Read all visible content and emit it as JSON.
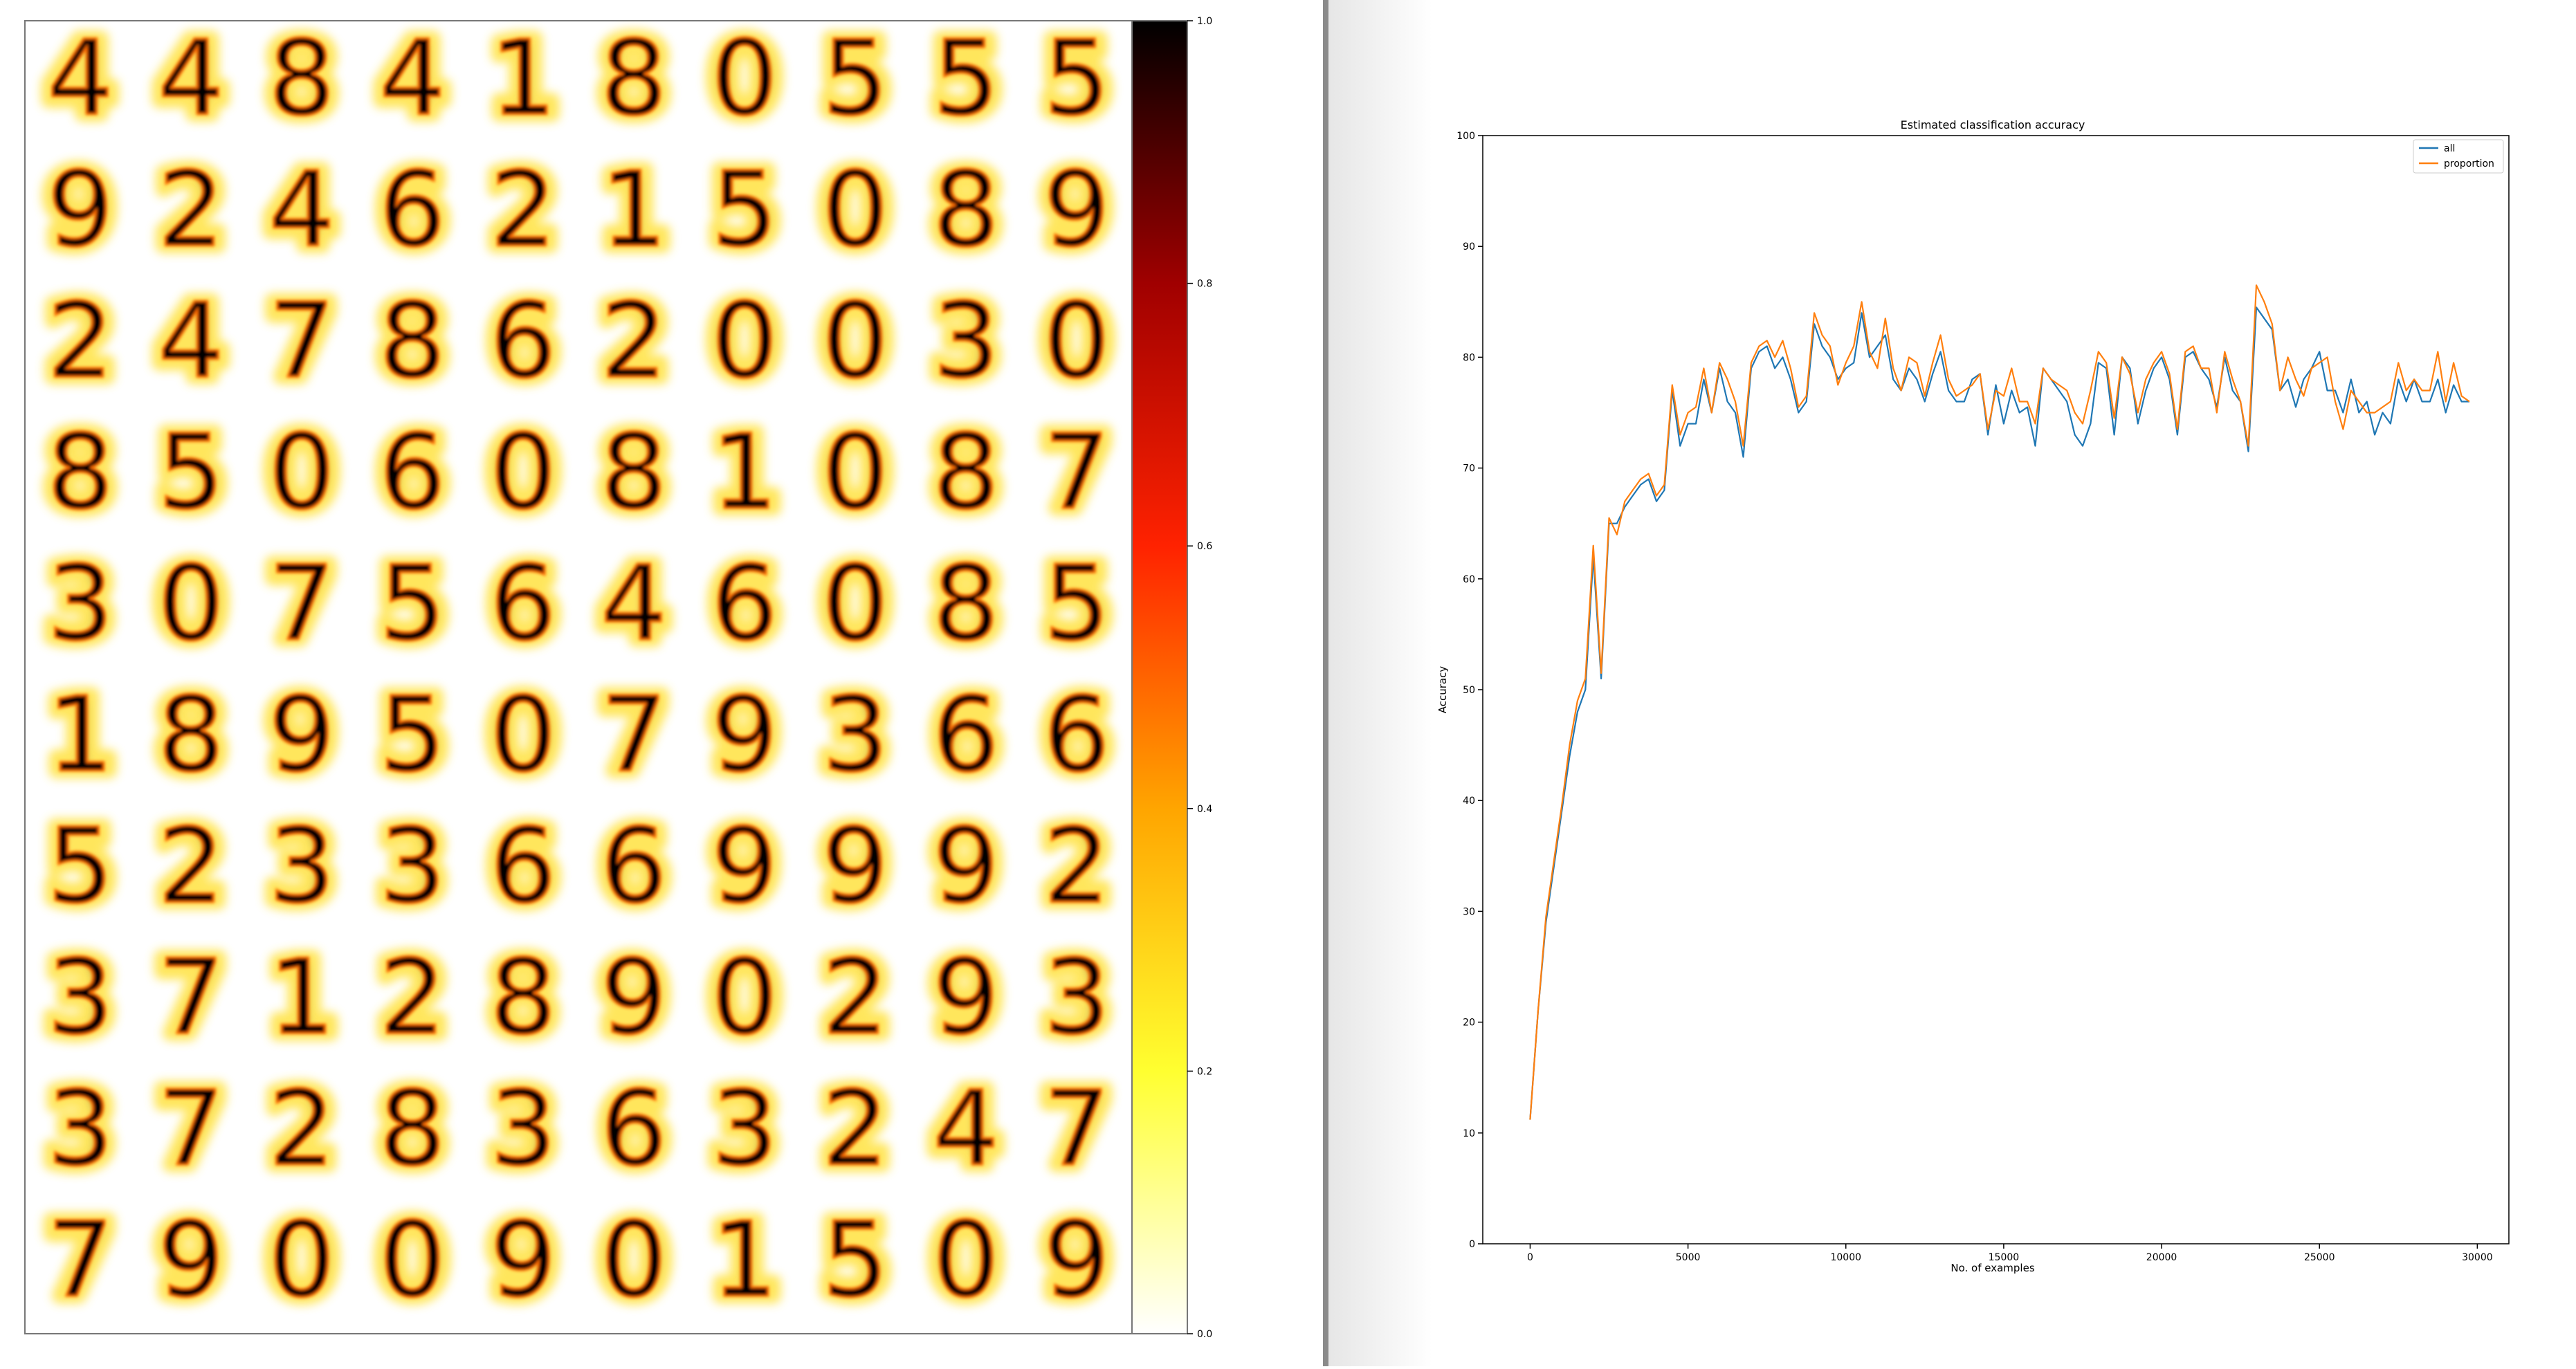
{
  "colors": {
    "colormap": [
      "#ffffff",
      "#ffff00",
      "#ff8c00",
      "#ff0000",
      "#7a0000",
      "#000000"
    ],
    "series_all": "#1f77b4",
    "series_proportion": "#ff7f0e",
    "divider": "#8a8a8a"
  },
  "digit_grid": {
    "rows": [
      [
        "4",
        "4",
        "8",
        "4",
        "1",
        "8",
        "0",
        "5",
        "5",
        "5"
      ],
      [
        "9",
        "2",
        "4",
        "6",
        "2",
        "1",
        "5",
        "0",
        "8",
        "9"
      ],
      [
        "2",
        "4",
        "7",
        "8",
        "6",
        "2",
        "0",
        "0",
        "3",
        "0"
      ],
      [
        "8",
        "5",
        "0",
        "6",
        "0",
        "8",
        "1",
        "0",
        "8",
        "7"
      ],
      [
        "3",
        "0",
        "7",
        "5",
        "6",
        "4",
        "6",
        "0",
        "8",
        "5"
      ],
      [
        "1",
        "8",
        "9",
        "5",
        "0",
        "7",
        "9",
        "3",
        "6",
        "6"
      ],
      [
        "5",
        "2",
        "3",
        "3",
        "6",
        "6",
        "9",
        "9",
        "9",
        "2"
      ],
      [
        "3",
        "7",
        "1",
        "2",
        "8",
        "9",
        "0",
        "2",
        "9",
        "3"
      ],
      [
        "3",
        "7",
        "2",
        "8",
        "3",
        "6",
        "3",
        "2",
        "4",
        "7"
      ],
      [
        "7",
        "9",
        "0",
        "0",
        "9",
        "0",
        "1",
        "5",
        "0",
        "9"
      ]
    ]
  },
  "colorbar": {
    "ticks": [
      "0.0",
      "0.2",
      "0.4",
      "0.6",
      "0.8",
      "1.0"
    ],
    "range": [
      0,
      1
    ]
  },
  "chart_data": {
    "type": "line",
    "title": "Estimated classification accuracy",
    "xlabel": "No. of examples",
    "ylabel": "Accuracy",
    "xlim": [
      -1500,
      31000
    ],
    "ylim": [
      0,
      100
    ],
    "xticks": [
      0,
      5000,
      10000,
      15000,
      20000,
      25000,
      30000
    ],
    "yticks": [
      0,
      10,
      20,
      30,
      40,
      50,
      60,
      70,
      80,
      90,
      100
    ],
    "xtick_labels": [
      "0",
      "5000",
      "10000",
      "15000",
      "20000",
      "25000",
      "30000"
    ],
    "ytick_labels": [
      "0",
      "10",
      "20",
      "30",
      "40",
      "50",
      "60",
      "70",
      "80",
      "90",
      "100"
    ],
    "legend_position": "top-right",
    "grid": false,
    "x": [
      0,
      250,
      500,
      750,
      1000,
      1250,
      1500,
      1750,
      2000,
      2250,
      2500,
      2750,
      3000,
      3250,
      3500,
      3750,
      4000,
      4250,
      4500,
      4750,
      5000,
      5250,
      5500,
      5750,
      6000,
      6250,
      6500,
      6750,
      7000,
      7250,
      7500,
      7750,
      8000,
      8250,
      8500,
      8750,
      9000,
      9250,
      9500,
      9750,
      10000,
      10250,
      10500,
      10750,
      11000,
      11250,
      11500,
      11750,
      12000,
      12250,
      12500,
      12750,
      13000,
      13250,
      13500,
      13750,
      14000,
      14250,
      14500,
      14750,
      15000,
      15250,
      15500,
      15750,
      16000,
      16250,
      16500,
      16750,
      17000,
      17250,
      17500,
      17750,
      18000,
      18250,
      18500,
      18750,
      19000,
      19250,
      19500,
      19750,
      20000,
      20250,
      20500,
      20750,
      21000,
      21250,
      21500,
      21750,
      22000,
      22250,
      22500,
      22750,
      23000,
      23250,
      23500,
      23750,
      24000,
      24250,
      24500,
      24750,
      25000,
      25250,
      25500,
      25750,
      26000,
      26250,
      26500,
      26750,
      27000,
      27250,
      27500,
      27750,
      28000,
      28250,
      28500,
      28750,
      29000,
      29250,
      29500,
      29750
    ],
    "series": [
      {
        "name": "all",
        "values": [
          11.2,
          21,
          29,
          34,
          39,
          44,
          48,
          50,
          62,
          51,
          65,
          65,
          66.5,
          67.5,
          68.5,
          69,
          67,
          68,
          77,
          72,
          74,
          74,
          78,
          75,
          79,
          76,
          75,
          71,
          79,
          80.5,
          81,
          79,
          80,
          78,
          75,
          76,
          83,
          81,
          80,
          78,
          79,
          79.5,
          84,
          80,
          81,
          82,
          78,
          77,
          79,
          78,
          76,
          78.5,
          80.5,
          77,
          76,
          76,
          78,
          78.5,
          73,
          77.5,
          74,
          77,
          75,
          75.5,
          72,
          79,
          78,
          77,
          76,
          73,
          72,
          74,
          79.5,
          79,
          73,
          80,
          79,
          74,
          77,
          79,
          80,
          78,
          73,
          80,
          80.5,
          79,
          78,
          75.5,
          80,
          77,
          76,
          71.5,
          84.5,
          83.5,
          82.5,
          77,
          78,
          75.5,
          78,
          79,
          80.5,
          77,
          77,
          75,
          78,
          75,
          76,
          73,
          75,
          74,
          78,
          76,
          78,
          76,
          76,
          78,
          75,
          77.5,
          76,
          76
        ]
      },
      {
        "name": "proportion",
        "values": [
          11.2,
          21,
          29.5,
          34.5,
          39.5,
          45,
          49,
          51,
          63,
          51.5,
          65.5,
          64,
          67,
          68,
          69,
          69.5,
          67.5,
          68.5,
          77.5,
          73,
          75,
          75.5,
          79,
          75,
          79.5,
          78,
          76,
          72,
          79.5,
          81,
          81.5,
          80,
          81.5,
          79,
          75.5,
          76.5,
          84,
          82,
          81,
          77.5,
          79.5,
          81,
          85,
          80.5,
          79,
          83.5,
          79,
          77,
          80,
          79.5,
          76.5,
          79.5,
          82,
          78,
          76.5,
          77,
          77.5,
          78.5,
          73.5,
          77,
          76.5,
          79,
          76,
          76,
          74,
          79,
          78,
          77.5,
          77,
          75,
          74,
          77,
          80.5,
          79.5,
          74.5,
          80,
          78.5,
          75,
          78,
          79.5,
          80.5,
          78.5,
          73.5,
          80.5,
          81,
          79,
          79,
          75,
          80.5,
          78,
          76,
          72,
          86.5,
          85,
          83,
          77,
          80,
          78,
          76.5,
          79,
          79.5,
          80,
          76,
          73.5,
          77,
          76,
          75,
          75,
          75.5,
          76,
          79.5,
          77,
          78,
          77,
          77,
          80.5,
          76,
          79.5,
          76.5,
          76
        ]
      }
    ]
  }
}
